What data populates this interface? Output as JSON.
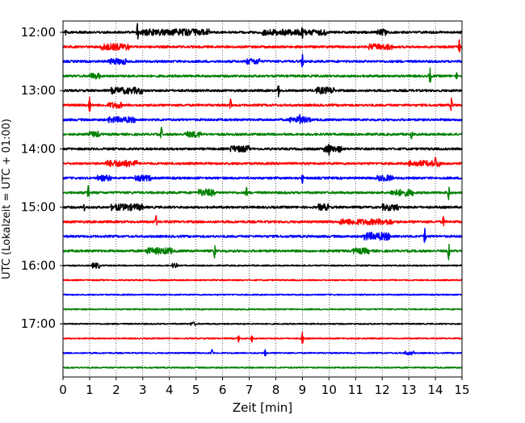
{
  "chart_data": {
    "type": "line",
    "xlabel": "Zeit  [min]",
    "ylabel": "UTC (Lokalzeit = UTC + 01:00)",
    "xlim": [
      0,
      15
    ],
    "x_ticks": [
      0,
      1,
      2,
      3,
      4,
      5,
      6,
      7,
      8,
      9,
      10,
      11,
      12,
      13,
      14,
      15
    ],
    "y_tick_labels": [
      "12:00",
      "13:00",
      "14:00",
      "15:00",
      "16:00",
      "17:00"
    ],
    "grid": "vertical dotted",
    "colors": {
      "black": "#000000",
      "red": "#ff0000",
      "blue": "#0000ff",
      "green": "#008000"
    },
    "series": [
      {
        "time": "12:00",
        "color": "black",
        "spikes": [
          [
            2.8,
            1.0
          ],
          [
            9.0,
            0.7
          ],
          [
            0.1,
            0.3
          ]
        ],
        "bursts": [
          [
            2.9,
            5.5,
            0.35
          ],
          [
            7.5,
            9.9,
            0.3
          ],
          [
            11.8,
            12.2,
            0.4
          ]
        ]
      },
      {
        "time": "12:15",
        "color": "red",
        "spikes": [
          [
            14.9,
            0.8
          ]
        ],
        "bursts": [
          [
            1.4,
            2.5,
            0.35
          ],
          [
            11.5,
            12.4,
            0.3
          ]
        ]
      },
      {
        "time": "12:30",
        "color": "blue",
        "spikes": [
          [
            9.0,
            0.8
          ]
        ],
        "bursts": [
          [
            1.7,
            2.4,
            0.3
          ],
          [
            6.9,
            7.4,
            0.3
          ]
        ]
      },
      {
        "time": "12:45",
        "color": "green",
        "spikes": [
          [
            13.8,
            0.9
          ],
          [
            14.8,
            0.4
          ]
        ],
        "bursts": [
          [
            1.0,
            1.4,
            0.3
          ]
        ]
      },
      {
        "time": "13:00",
        "color": "black",
        "spikes": [
          [
            8.1,
            0.7
          ]
        ],
        "bursts": [
          [
            1.8,
            3.0,
            0.35
          ],
          [
            9.5,
            10.2,
            0.35
          ]
        ]
      },
      {
        "time": "13:15",
        "color": "red",
        "spikes": [
          [
            1.0,
            0.9
          ],
          [
            6.3,
            0.7
          ],
          [
            14.6,
            0.8
          ]
        ],
        "bursts": [
          [
            1.7,
            2.2,
            0.3
          ]
        ]
      },
      {
        "time": "13:30",
        "color": "blue",
        "spikes": [
          [
            8.9,
            0.6
          ]
        ],
        "bursts": [
          [
            1.7,
            2.7,
            0.3
          ],
          [
            8.5,
            9.3,
            0.3
          ]
        ]
      },
      {
        "time": "13:45",
        "color": "green",
        "spikes": [
          [
            3.7,
            0.8
          ],
          [
            13.1,
            0.5
          ]
        ],
        "bursts": [
          [
            1.0,
            1.4,
            0.3
          ],
          [
            4.6,
            5.2,
            0.3
          ]
        ]
      },
      {
        "time": "14:00",
        "color": "black",
        "spikes": [
          [
            10.0,
            0.7
          ]
        ],
        "bursts": [
          [
            6.3,
            7.0,
            0.35
          ],
          [
            9.8,
            10.5,
            0.35
          ]
        ]
      },
      {
        "time": "14:15",
        "color": "red",
        "spikes": [
          [
            14.0,
            0.7
          ]
        ],
        "bursts": [
          [
            1.6,
            2.8,
            0.35
          ],
          [
            13.0,
            14.2,
            0.3
          ]
        ]
      },
      {
        "time": "14:30",
        "color": "blue",
        "spikes": [
          [
            9.0,
            0.6
          ]
        ],
        "bursts": [
          [
            1.3,
            1.8,
            0.3
          ],
          [
            2.7,
            3.3,
            0.3
          ],
          [
            11.8,
            12.4,
            0.3
          ]
        ]
      },
      {
        "time": "14:45",
        "color": "green",
        "spikes": [
          [
            0.95,
            0.8
          ],
          [
            6.9,
            0.6
          ],
          [
            14.5,
            0.8
          ]
        ],
        "bursts": [
          [
            5.1,
            5.7,
            0.4
          ],
          [
            12.3,
            13.2,
            0.35
          ]
        ]
      },
      {
        "time": "15:00",
        "color": "black",
        "spikes": [
          [
            0.8,
            0.4
          ]
        ],
        "bursts": [
          [
            1.8,
            3.0,
            0.35
          ],
          [
            9.6,
            10.0,
            0.35
          ],
          [
            12.0,
            12.6,
            0.35
          ]
        ]
      },
      {
        "time": "15:15",
        "color": "red",
        "spikes": [
          [
            3.5,
            0.7
          ],
          [
            14.3,
            0.6
          ]
        ],
        "bursts": [
          [
            10.4,
            12.4,
            0.3
          ]
        ]
      },
      {
        "time": "15:30",
        "color": "blue",
        "spikes": [
          [
            13.6,
            0.9
          ]
        ],
        "bursts": [
          [
            11.3,
            12.3,
            0.45
          ]
        ]
      },
      {
        "time": "15:45",
        "color": "green",
        "spikes": [
          [
            5.7,
            0.8
          ],
          [
            14.5,
            1.0
          ]
        ],
        "bursts": [
          [
            3.1,
            4.1,
            0.35
          ],
          [
            10.9,
            11.5,
            0.3
          ]
        ]
      },
      {
        "time": "16:00",
        "color": "black",
        "spikes": [],
        "bursts": [
          [
            1.1,
            1.4,
            0.35
          ],
          [
            4.1,
            4.3,
            0.3
          ]
        ]
      },
      {
        "time": "16:15",
        "color": "red",
        "spikes": [],
        "bursts": []
      },
      {
        "time": "16:30",
        "color": "blue",
        "spikes": [],
        "bursts": []
      },
      {
        "time": "16:45",
        "color": "green",
        "spikes": [],
        "bursts": []
      },
      {
        "time": "17:00",
        "color": "black",
        "spikes": [],
        "bursts": [
          [
            4.8,
            5.0,
            0.2
          ]
        ]
      },
      {
        "time": "17:15",
        "color": "red",
        "spikes": [
          [
            9.0,
            0.7
          ],
          [
            6.6,
            0.4
          ],
          [
            7.1,
            0.4
          ]
        ],
        "bursts": []
      },
      {
        "time": "17:30",
        "color": "blue",
        "spikes": [
          [
            5.6,
            0.4
          ],
          [
            7.6,
            0.4
          ]
        ],
        "bursts": [
          [
            12.8,
            13.2,
            0.2
          ]
        ]
      },
      {
        "time": "17:45",
        "color": "green",
        "spikes": [],
        "bursts": []
      }
    ]
  }
}
